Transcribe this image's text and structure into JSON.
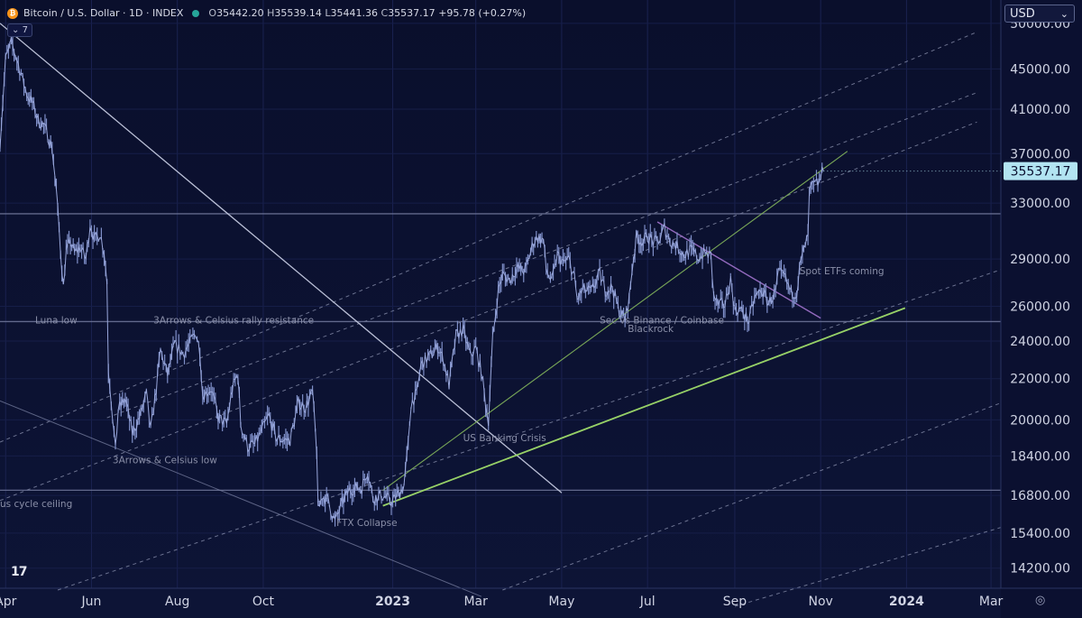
{
  "header": {
    "symbol": "Bitcoin / U.S. Dollar · 1D · INDEX",
    "coin_glyph": "₿",
    "ohlc": {
      "o_label": "O",
      "o": "35442.20",
      "h_label": "H",
      "h": "35539.14",
      "l_label": "L",
      "l": "35441.36",
      "c_label": "C",
      "c": "35537.17",
      "change": "+95.78 (+0.27%)"
    },
    "indicator_count": "7"
  },
  "currency": {
    "value": "USD",
    "chevron": "⌄"
  },
  "logo": "17",
  "settings_glyph": "◎",
  "colors": {
    "background_top": "#0a0f2c",
    "background_bottom": "#0d1436",
    "price": "#7f8fc8",
    "trend_white": "#c5cae0",
    "trend_green": "#9fdc6a",
    "trend_purple": "#9b6fc6",
    "channel_dash": "#b9c0dc",
    "price_tag_bg": "#b2e4f2",
    "annotation": "#8a8fa8"
  },
  "chart_data": {
    "type": "line",
    "title": "Bitcoin / U.S. Dollar · 1D · INDEX",
    "scale": "log",
    "ylim": [
      13500,
      52000
    ],
    "xlim": [
      "2022-03-28",
      "2024-03-08"
    ],
    "grid": true,
    "x_ticks": [
      {
        "date": "2022-04-01",
        "label": "Apr",
        "bold": false
      },
      {
        "date": "2022-06-01",
        "label": "Jun",
        "bold": false
      },
      {
        "date": "2022-08-01",
        "label": "Aug",
        "bold": false
      },
      {
        "date": "2022-10-01",
        "label": "Oct",
        "bold": false
      },
      {
        "date": "2023-01-01",
        "label": "2023",
        "bold": true
      },
      {
        "date": "2023-03-01",
        "label": "Mar",
        "bold": false
      },
      {
        "date": "2023-05-01",
        "label": "May",
        "bold": false
      },
      {
        "date": "2023-07-01",
        "label": "Jul",
        "bold": false
      },
      {
        "date": "2023-09-01",
        "label": "Sep",
        "bold": false
      },
      {
        "date": "2023-11-01",
        "label": "Nov",
        "bold": false
      },
      {
        "date": "2024-01-01",
        "label": "2024",
        "bold": true
      },
      {
        "date": "2024-03-01",
        "label": "Mar",
        "bold": false
      }
    ],
    "y_ticks": [
      "50000.00",
      "45000.00",
      "41000.00",
      "37000.00",
      "33000.00",
      "29000.00",
      "26000.00",
      "24000.00",
      "22000.00",
      "20000.00",
      "18400.00",
      "16800.00",
      "15400.00",
      "14200.00"
    ],
    "last_price": {
      "value": 35537.17,
      "label": "35537.17"
    },
    "series": [
      {
        "values": [
          [
            "2022-03-28",
            38000
          ],
          [
            "2022-04-01",
            46000
          ],
          [
            "2022-04-05",
            47800
          ],
          [
            "2022-04-08",
            46500
          ],
          [
            "2022-04-12",
            44500
          ],
          [
            "2022-04-16",
            42500
          ],
          [
            "2022-04-20",
            41600
          ],
          [
            "2022-04-24",
            40000
          ],
          [
            "2022-04-28",
            39500
          ],
          [
            "2022-05-01",
            38600
          ],
          [
            "2022-05-04",
            37500
          ],
          [
            "2022-05-07",
            34000
          ],
          [
            "2022-05-09",
            31000
          ],
          [
            "2022-05-12",
            27200
          ],
          [
            "2022-05-14",
            29500
          ],
          [
            "2022-05-17",
            30200
          ],
          [
            "2022-05-20",
            29400
          ],
          [
            "2022-05-24",
            29800
          ],
          [
            "2022-05-28",
            29000
          ],
          [
            "2022-05-31",
            31500
          ],
          [
            "2022-06-03",
            30300
          ],
          [
            "2022-06-07",
            30800
          ],
          [
            "2022-06-10",
            29500
          ],
          [
            "2022-06-12",
            27500
          ],
          [
            "2022-06-13",
            22500
          ],
          [
            "2022-06-15",
            21000
          ],
          [
            "2022-06-18",
            18600
          ],
          [
            "2022-06-20",
            20500
          ],
          [
            "2022-06-25",
            21000
          ],
          [
            "2022-06-30",
            19400
          ],
          [
            "2022-07-05",
            20100
          ],
          [
            "2022-07-10",
            21200
          ],
          [
            "2022-07-13",
            19500
          ],
          [
            "2022-07-17",
            21500
          ],
          [
            "2022-07-20",
            23500
          ],
          [
            "2022-07-25",
            22200
          ],
          [
            "2022-07-30",
            23800
          ],
          [
            "2022-08-05",
            23300
          ],
          [
            "2022-08-10",
            23900
          ],
          [
            "2022-08-14",
            24500
          ],
          [
            "2022-08-17",
            23500
          ],
          [
            "2022-08-19",
            21200
          ],
          [
            "2022-08-25",
            21500
          ],
          [
            "2022-08-30",
            20100
          ],
          [
            "2022-09-05",
            19800
          ],
          [
            "2022-09-09",
            21500
          ],
          [
            "2022-09-13",
            22300
          ],
          [
            "2022-09-15",
            19800
          ],
          [
            "2022-09-20",
            18800
          ],
          [
            "2022-09-25",
            18900
          ],
          [
            "2022-09-30",
            19500
          ],
          [
            "2022-10-05",
            20200
          ],
          [
            "2022-10-10",
            19200
          ],
          [
            "2022-10-15",
            19100
          ],
          [
            "2022-10-20",
            19100
          ],
          [
            "2022-10-26",
            20800
          ],
          [
            "2022-10-31",
            20600
          ],
          [
            "2022-11-05",
            21300
          ],
          [
            "2022-11-08",
            18600
          ],
          [
            "2022-11-09",
            16200
          ],
          [
            "2022-11-12",
            16800
          ],
          [
            "2022-11-16",
            16600
          ],
          [
            "2022-11-21",
            15800
          ],
          [
            "2022-11-26",
            16500
          ],
          [
            "2022-12-01",
            17000
          ],
          [
            "2022-12-05",
            17100
          ],
          [
            "2022-12-10",
            17100
          ],
          [
            "2022-12-14",
            17800
          ],
          [
            "2022-12-18",
            16700
          ],
          [
            "2022-12-25",
            16800
          ],
          [
            "2022-12-31",
            16550
          ],
          [
            "2023-01-05",
            16850
          ],
          [
            "2023-01-09",
            17200
          ],
          [
            "2023-01-12",
            18900
          ],
          [
            "2023-01-14",
            20800
          ],
          [
            "2023-01-18",
            21200
          ],
          [
            "2023-01-21",
            22700
          ],
          [
            "2023-01-25",
            23000
          ],
          [
            "2023-01-30",
            23400
          ],
          [
            "2023-02-02",
            23700
          ],
          [
            "2023-02-06",
            23000
          ],
          [
            "2023-02-10",
            21700
          ],
          [
            "2023-02-15",
            24300
          ],
          [
            "2023-02-20",
            24600
          ],
          [
            "2023-02-25",
            23200
          ],
          [
            "2023-03-01",
            23600
          ],
          [
            "2023-03-05",
            22300
          ],
          [
            "2023-03-09",
            20300
          ],
          [
            "2023-03-10",
            20000
          ],
          [
            "2023-03-13",
            24100
          ],
          [
            "2023-03-17",
            27000
          ],
          [
            "2023-03-20",
            28000
          ],
          [
            "2023-03-25",
            27600
          ],
          [
            "2023-03-30",
            28400
          ],
          [
            "2023-04-05",
            28200
          ],
          [
            "2023-04-11",
            30200
          ],
          [
            "2023-04-14",
            30500
          ],
          [
            "2023-04-18",
            30300
          ],
          [
            "2023-04-20",
            28300
          ],
          [
            "2023-04-24",
            27500
          ],
          [
            "2023-04-28",
            29300
          ],
          [
            "2023-05-02",
            28700
          ],
          [
            "2023-05-06",
            29000
          ],
          [
            "2023-05-10",
            27800
          ],
          [
            "2023-05-12",
            26400
          ],
          [
            "2023-05-16",
            27000
          ],
          [
            "2023-05-22",
            26900
          ],
          [
            "2023-05-28",
            28000
          ],
          [
            "2023-06-01",
            27000
          ],
          [
            "2023-06-06",
            27200
          ],
          [
            "2023-06-10",
            25900
          ],
          [
            "2023-06-15",
            25200
          ],
          [
            "2023-06-18",
            26500
          ],
          [
            "2023-06-20",
            28300
          ],
          [
            "2023-06-23",
            30500
          ],
          [
            "2023-06-28",
            30200
          ],
          [
            "2023-07-01",
            30600
          ],
          [
            "2023-07-06",
            30100
          ],
          [
            "2023-07-10",
            30400
          ],
          [
            "2023-07-13",
            31200
          ],
          [
            "2023-07-17",
            30200
          ],
          [
            "2023-07-22",
            29900
          ],
          [
            "2023-07-27",
            29300
          ],
          [
            "2023-08-01",
            29600
          ],
          [
            "2023-08-06",
            29100
          ],
          [
            "2023-08-11",
            29400
          ],
          [
            "2023-08-15",
            29200
          ],
          [
            "2023-08-17",
            26600
          ],
          [
            "2023-08-20",
            26100
          ],
          [
            "2023-08-25",
            26100
          ],
          [
            "2023-08-29",
            27700
          ],
          [
            "2023-09-01",
            25800
          ],
          [
            "2023-09-05",
            25800
          ],
          [
            "2023-09-11",
            25100
          ],
          [
            "2023-09-15",
            26500
          ],
          [
            "2023-09-20",
            27000
          ],
          [
            "2023-09-25",
            26200
          ],
          [
            "2023-09-30",
            26900
          ],
          [
            "2023-10-02",
            28000
          ],
          [
            "2023-10-06",
            27900
          ],
          [
            "2023-10-11",
            26800
          ],
          [
            "2023-10-15",
            26900
          ],
          [
            "2023-10-17",
            28400
          ],
          [
            "2023-10-20",
            29600
          ],
          [
            "2023-10-23",
            30500
          ],
          [
            "2023-10-24",
            33800
          ],
          [
            "2023-10-26",
            34300
          ],
          [
            "2023-10-29",
            34500
          ],
          [
            "2023-10-31",
            34600
          ],
          [
            "2023-11-02",
            35400
          ],
          [
            "2023-11-03",
            35537
          ]
        ]
      }
    ],
    "horizontal_levels": [
      32200,
      25100,
      17000
    ],
    "trendlines": [
      {
        "color": "white",
        "from": [
          "2022-03-28",
          50000
        ],
        "to": [
          "2023-05-01",
          16900
        ]
      },
      {
        "color": "grey",
        "from": [
          "2022-03-28",
          20900
        ],
        "to": [
          "2023-03-05",
          13300
        ]
      },
      {
        "color": "green",
        "from": [
          "2022-12-25",
          17000
        ],
        "to": [
          "2023-11-20",
          37200
        ]
      },
      {
        "color": "green-bright",
        "from": [
          "2022-12-25",
          16400
        ],
        "to": [
          "2023-12-31",
          25900
        ]
      },
      {
        "color": "purple",
        "from": [
          "2023-07-08",
          31600
        ],
        "to": [
          "2023-11-01",
          25300
        ]
      }
    ],
    "channels": [
      {
        "from": [
          "2022-05-08",
          13500
        ],
        "to": [
          "2024-03-08",
          28300
        ]
      },
      {
        "from": [
          "2022-03-28",
          16600
        ],
        "to": [
          "2024-02-20",
          39800
        ]
      },
      {
        "from": [
          "2022-06-12",
          20100
        ],
        "to": [
          "2024-02-20",
          42600
        ]
      },
      {
        "from": [
          "2022-03-28",
          19000
        ],
        "to": [
          "2024-02-20",
          49000
        ]
      },
      {
        "from": [
          "2023-03-20",
          13500
        ],
        "to": [
          "2024-03-08",
          20800
        ]
      },
      {
        "from": [
          "2023-09-01",
          13000
        ],
        "to": [
          "2024-03-08",
          15600
        ]
      }
    ],
    "annotations": [
      {
        "text": "Luna low",
        "date": "2022-04-22",
        "value": 25000
      },
      {
        "text": "3Arrows & Celsius rally resistance",
        "date": "2022-07-15",
        "value": 25000
      },
      {
        "text": "3Arrows & Celsius low",
        "date": "2022-06-16",
        "value": 18100
      },
      {
        "text": "us cycle ceiling",
        "date": "2022-03-28",
        "value": 16350
      },
      {
        "text": "FTX Collapse",
        "date": "2022-11-22",
        "value": 15650
      },
      {
        "text": "US Banking Crisis",
        "date": "2023-02-20",
        "value": 19050
      },
      {
        "text": "Sec vs Binance / Coinbase",
        "date": "2023-05-28",
        "value": 25000
      },
      {
        "text": "Blackrock",
        "date": "2023-06-17",
        "value": 24500
      },
      {
        "text": "Spot ETFs coming",
        "date": "2023-10-17",
        "value": 28000
      }
    ]
  }
}
